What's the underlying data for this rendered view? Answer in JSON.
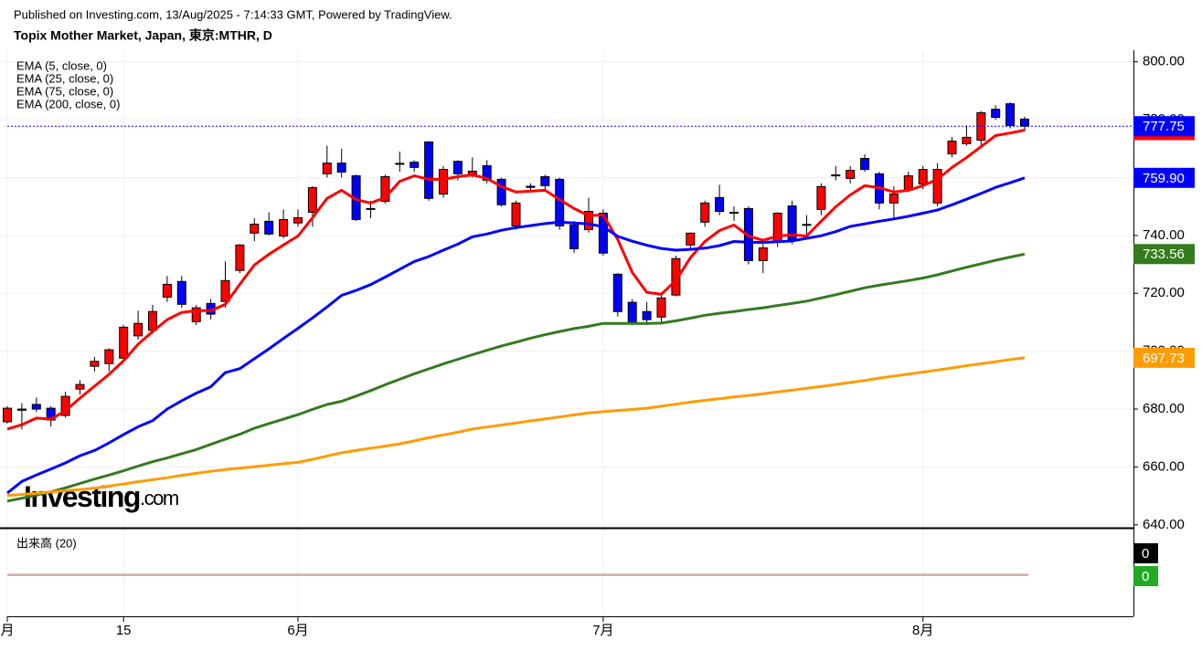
{
  "header": {
    "published": "Published on Investing.com, 13/Aug/2025 - 7:14:33 GMT, Powered by TradingView.",
    "symbol": "Topix Mother Market, Japan, 東京:MTHR, D"
  },
  "watermark": {
    "brand": "Investing",
    "suffix": ".com"
  },
  "chart_data": {
    "type": "candlestick",
    "categories": [
      "月",
      null,
      null,
      null,
      null,
      null,
      null,
      null,
      "15",
      null,
      null,
      null,
      null,
      null,
      null,
      null,
      null,
      null,
      null,
      null,
      "6月",
      null,
      null,
      null,
      null,
      null,
      null,
      null,
      null,
      null,
      null,
      null,
      null,
      null,
      null,
      null,
      null,
      null,
      null,
      null,
      null,
      "7月",
      null,
      null,
      null,
      null,
      null,
      null,
      null,
      null,
      null,
      null,
      null,
      null,
      null,
      null,
      null,
      null,
      null,
      null,
      null,
      null,
      null,
      "8月",
      null,
      null,
      null,
      null,
      null,
      null,
      null
    ],
    "ohlc": {
      "open": [
        675.6,
        680,
        681.6,
        680.3,
        677.8,
        686.9,
        694.8,
        695.7,
        697.6,
        705.3,
        707.2,
        718.7,
        724.1,
        710.2,
        716.5,
        717.2,
        727.9,
        740.8,
        744.9,
        739.8,
        744.3,
        748.0,
        761.3,
        765,
        760.6,
        749.3,
        751.8,
        764.9,
        765.3,
        772.3,
        754.3,
        765.6,
        760.6,
        764.1,
        759.4,
        743.3,
        757,
        760.3,
        759.4,
        743.6,
        742,
        747.7,
        726.6,
        716.9,
        713.7,
        711.8,
        719.4,
        736.7,
        744.6,
        753.1,
        748,
        749.3,
        731.3,
        737.6,
        750.2,
        743.8,
        749,
        760.9,
        759.7,
        766.6,
        761.3,
        751.2,
        755.6,
        757.8,
        751.2,
        768.2,
        771.7,
        772.9,
        783.6,
        785.5,
        780.2
      ],
      "high": [
        681,
        682,
        684,
        681,
        686,
        690,
        698,
        701,
        709,
        714,
        716,
        726,
        726,
        716,
        718,
        731,
        737,
        746,
        748,
        749,
        749,
        757,
        771,
        770,
        761,
        752,
        761,
        769,
        766,
        772.5,
        764,
        766,
        767,
        766,
        760,
        752,
        758,
        761,
        760,
        745,
        753,
        749,
        727,
        718,
        717,
        720,
        733,
        741,
        752,
        757.5,
        750,
        750,
        737,
        748,
        752,
        747,
        758,
        764,
        764,
        768,
        762,
        757,
        762,
        764,
        765,
        774,
        778,
        783,
        785,
        786,
        781
      ],
      "low": [
        675,
        673,
        679,
        674,
        677,
        685,
        693,
        693,
        697,
        704,
        706,
        717,
        715,
        709,
        711,
        715,
        727,
        738,
        740,
        739,
        743,
        743,
        760,
        760,
        745,
        746,
        751,
        762,
        762,
        752,
        753,
        759,
        760,
        758,
        750,
        742,
        755,
        756,
        742,
        734,
        741,
        733,
        712,
        709,
        709,
        710,
        719,
        735,
        743,
        747,
        745,
        730,
        727,
        736,
        737,
        740,
        747,
        759,
        758,
        762,
        749,
        746,
        755,
        756,
        750,
        767,
        771,
        771,
        780,
        777,
        776
      ],
      "close": [
        680.3,
        679.6,
        680,
        676.2,
        684.4,
        688.5,
        696.5,
        700.5,
        708.3,
        709.6,
        713.7,
        723.1,
        716.2,
        715,
        712.8,
        724.4,
        736.7,
        743.9,
        740.5,
        745.5,
        746.1,
        756.5,
        765,
        761.9,
        745.5,
        749,
        760.3,
        764.6,
        763.5,
        752.8,
        762.8,
        761.3,
        762.2,
        759.1,
        750.6,
        751.2,
        756.6,
        757.2,
        743.3,
        735.4,
        748.3,
        733.9,
        713.7,
        709.9,
        710.9,
        718.4,
        732,
        740.8,
        751.2,
        748.3,
        747.7,
        731.3,
        735.7,
        747.7,
        738.6,
        743.6,
        756.9,
        760.6,
        762.5,
        762.8,
        751.2,
        754.3,
        760.6,
        762.8,
        762.8,
        772.6,
        773.9,
        782.4,
        780.8,
        778,
        777.75
      ],
      "last_label": "777.75",
      "up_color": "#ff0000",
      "down_color": "#0000ff",
      "last_color": "#0000ff"
    },
    "series": [
      {
        "name": "EMA (5, close, 0)",
        "color": "#ff0000",
        "last_label": "776.39",
        "values": [
          673.1,
          674.6,
          676.9,
          676.5,
          679.4,
          683.8,
          687.9,
          692.0,
          696.7,
          702.4,
          706.8,
          710.9,
          713.4,
          714.0,
          714.0,
          716.2,
          723.1,
          729.8,
          733.5,
          736.7,
          739.8,
          746.1,
          752.8,
          755.6,
          752.4,
          751.2,
          753.1,
          758.7,
          760.6,
          759.4,
          759.4,
          760.3,
          760.9,
          759.7,
          756.9,
          755.0,
          755.3,
          755.6,
          752.4,
          749.3,
          746.8,
          747.1,
          738.6,
          727.2,
          720.3,
          719.7,
          724.4,
          732.3,
          737.9,
          741.7,
          743.6,
          739.8,
          738.3,
          739.8,
          740.2,
          739.8,
          744.9,
          749.9,
          754.0,
          757.2,
          756.5,
          755.0,
          755.6,
          757.2,
          759.4,
          763.5,
          766.9,
          770.7,
          774.5,
          775.4,
          776.39
        ]
      },
      {
        "name": "EMA (25, close, 0)",
        "color": "#0000ff",
        "last_label": "759.90",
        "values": [
          651.0,
          655.0,
          657.2,
          659.3,
          661.4,
          663.9,
          665.7,
          668.3,
          671.2,
          673.9,
          676.0,
          680.0,
          682.9,
          685.5,
          687.7,
          692.6,
          694.0,
          697.4,
          700.8,
          704.4,
          707.9,
          711.5,
          715.3,
          719.3,
          721.0,
          723.0,
          725.6,
          728.3,
          731.0,
          732.7,
          734.9,
          737.0,
          739.5,
          740.5,
          741.8,
          742.7,
          743.4,
          744.1,
          744.6,
          744.3,
          744.0,
          743.0,
          739.7,
          738.0,
          736.6,
          735.5,
          734.9,
          735.2,
          735.6,
          736.5,
          737.9,
          737.7,
          737.6,
          737.8,
          738.1,
          739.0,
          739.9,
          741.3,
          743.1,
          744.0,
          744.9,
          745.7,
          746.6,
          747.7,
          748.8,
          750.6,
          752.5,
          754.5,
          756.6,
          758.2,
          759.9
        ]
      },
      {
        "name": "EMA (75, close, 0)",
        "color": "#347a1f",
        "last_label": "733.56",
        "values": [
          648.2,
          649.2,
          650.3,
          651.4,
          652.8,
          654.3,
          655.8,
          657.2,
          658.7,
          660.3,
          661.8,
          663.1,
          664.6,
          666.0,
          667.8,
          669.6,
          671.3,
          673.4,
          675.0,
          676.5,
          678.1,
          679.9,
          681.6,
          682.7,
          684.5,
          686.4,
          688.4,
          690.3,
          692.2,
          693.9,
          695.6,
          697.2,
          698.8,
          700.3,
          701.8,
          703.1,
          704.5,
          705.7,
          706.8,
          707.8,
          708.6,
          709.6,
          709.6,
          709.6,
          709.6,
          709.7,
          710.5,
          711.4,
          712.4,
          713.1,
          713.7,
          714.4,
          715.0,
          715.8,
          716.5,
          717.3,
          718.4,
          719.5,
          720.7,
          721.9,
          722.8,
          723.6,
          724.4,
          725.3,
          726.4,
          727.7,
          729.0,
          730.2,
          731.4,
          732.5,
          733.56
        ]
      },
      {
        "name": "EMA (200, close, 0)",
        "color": "#ff9c00",
        "last_label": "697.73",
        "values": [
          650.1,
          650.5,
          650.9,
          651.4,
          651.8,
          652.2,
          652.7,
          653.4,
          654.1,
          654.9,
          655.6,
          656.3,
          657.1,
          657.8,
          658.5,
          659.1,
          659.6,
          660.1,
          660.6,
          661.1,
          661.6,
          662.6,
          663.8,
          664.9,
          665.7,
          666.5,
          667.2,
          668.0,
          669.0,
          670.1,
          671.1,
          672.0,
          673.1,
          673.8,
          674.5,
          675.2,
          675.9,
          676.6,
          677.3,
          678.0,
          678.7,
          679.1,
          679.5,
          679.9,
          680.3,
          681.0,
          681.7,
          682.4,
          683.0,
          683.6,
          684.2,
          684.7,
          685.3,
          685.9,
          686.5,
          687.2,
          687.8,
          688.5,
          689.2,
          689.9,
          690.7,
          691.4,
          692.1,
          692.8,
          693.5,
          694.2,
          695.0,
          695.7,
          696.4,
          697.1,
          697.73
        ]
      }
    ],
    "ylim": [
      639,
      804
    ],
    "yticks": [
      {
        "value": 640,
        "label": "640.00"
      },
      {
        "value": 660,
        "label": "660.00"
      },
      {
        "value": 680,
        "label": "680.00"
      },
      {
        "value": 700,
        "label": "700.00"
      },
      {
        "value": 720,
        "label": "720.00"
      },
      {
        "value": 740,
        "label": "740.00"
      },
      {
        "value": 760,
        "label": "760.00"
      },
      {
        "value": 780,
        "label": "780.00"
      },
      {
        "value": 800,
        "label": "800.00"
      }
    ],
    "grid": true,
    "volume": {
      "title": "出来高 (20)",
      "value": 0,
      "ma": 0,
      "value_color": "#000000",
      "ma_color": "#22aa22"
    }
  }
}
